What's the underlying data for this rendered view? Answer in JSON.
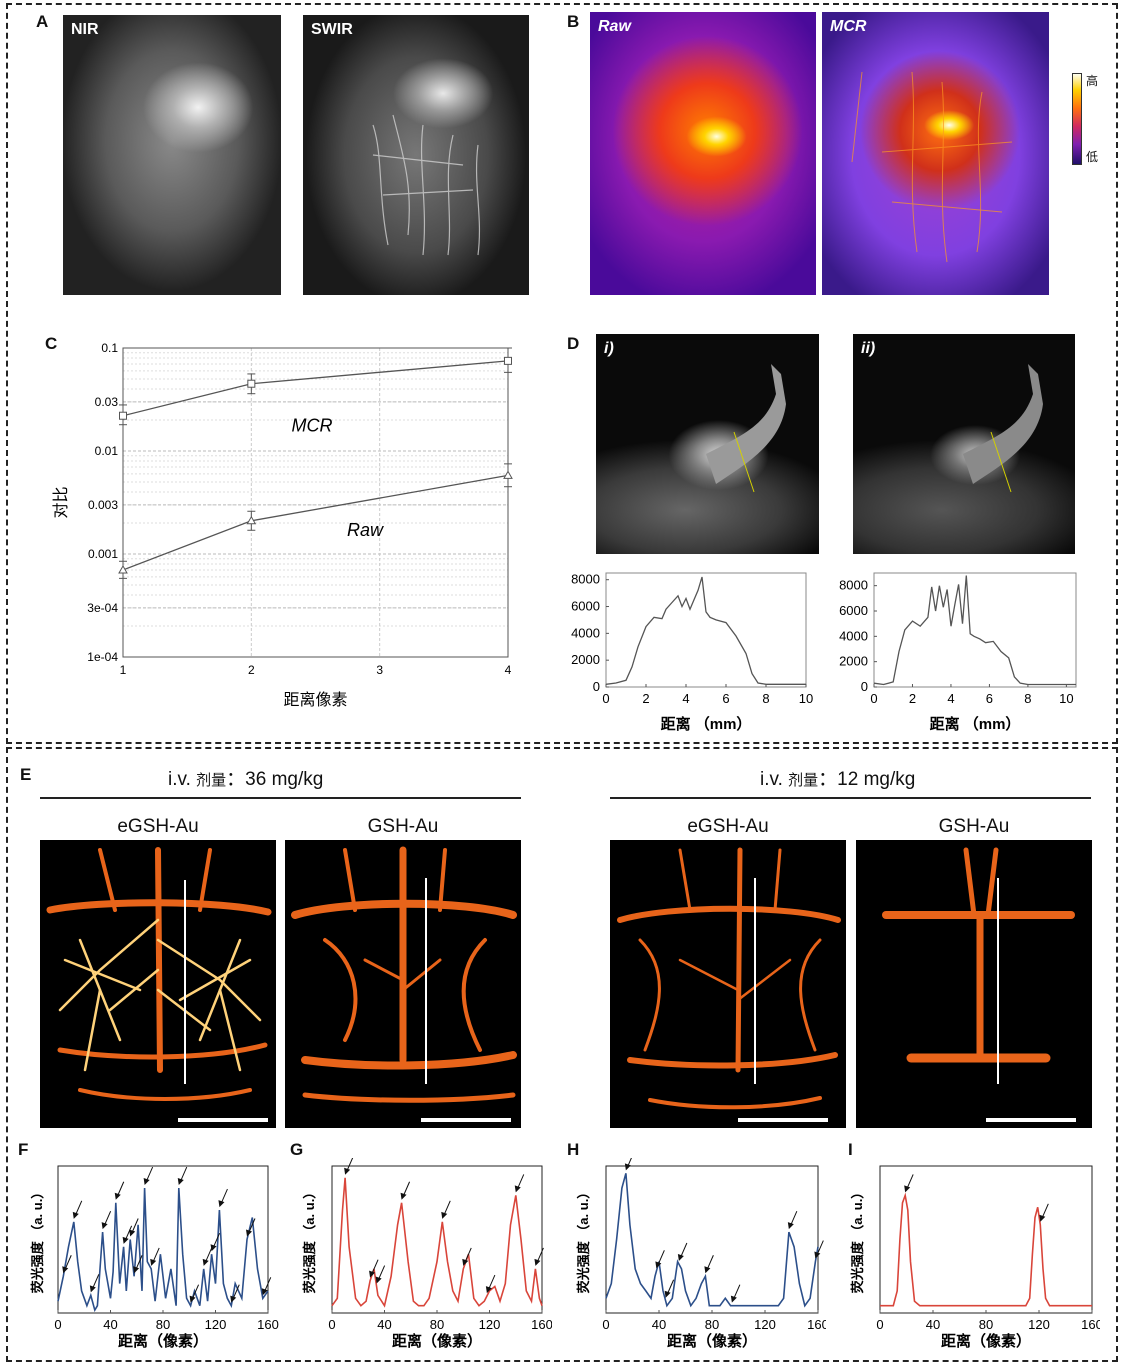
{
  "panels": {
    "A": {
      "label": "A",
      "images": [
        {
          "label": "NIR"
        },
        {
          "label": "SWIR"
        }
      ]
    },
    "B": {
      "label": "B",
      "images": [
        {
          "label": "Raw"
        },
        {
          "label": "MCR"
        }
      ],
      "colorbar": {
        "high": "高",
        "low": "低"
      }
    },
    "C": {
      "label": "C"
    },
    "D": {
      "label": "D",
      "images": [
        {
          "label": "i)"
        },
        {
          "label": "ii)"
        }
      ]
    },
    "E": {
      "label": "E",
      "groups": [
        {
          "dose_prefix": "i.v.",
          "dose_word": "剂量",
          "dose_value": "：36 mg/kg",
          "images": [
            {
              "label": "eGSH-Au"
            },
            {
              "label": "GSH-Au"
            }
          ]
        },
        {
          "dose_prefix": "i.v.",
          "dose_word": "剂量",
          "dose_value": "：12 mg/kg",
          "images": [
            {
              "label": "eGSH-Au"
            },
            {
              "label": "GSH-Au"
            }
          ]
        }
      ]
    },
    "F": {
      "label": "F"
    },
    "G": {
      "label": "G"
    },
    "H": {
      "label": "H"
    },
    "I": {
      "label": "I"
    }
  },
  "colors": {
    "blue": "#2c4f8a",
    "red": "#d9453a",
    "gray": "#555555",
    "mcr_line": "#555555"
  },
  "chart_data": [
    {
      "id": "C",
      "type": "line",
      "xlabel": "距离像素",
      "ylabel": "对比",
      "x": [
        1,
        2,
        4
      ],
      "xticks": [
        1,
        2,
        3,
        4
      ],
      "yscale": "log",
      "ylim": [
        0.0001,
        0.1
      ],
      "yticks": [
        {
          "v": 0.1,
          "t": "0.1"
        },
        {
          "v": 0.03,
          "t": "0.03"
        },
        {
          "v": 0.01,
          "t": "0.01"
        },
        {
          "v": 0.003,
          "t": "0.003"
        },
        {
          "v": 0.001,
          "t": "0.001"
        },
        {
          "v": 0.0003,
          "t": "3e-04"
        },
        {
          "v": 0.0001,
          "t": "1e-04"
        }
      ],
      "grid": true,
      "series": [
        {
          "name": "MCR",
          "marker": "square",
          "values": [
            0.022,
            0.045,
            0.075
          ],
          "err_lo": [
            0.018,
            0.036,
            0.058
          ],
          "err_hi": [
            0.028,
            0.056,
            0.1
          ]
        },
        {
          "name": "Raw",
          "marker": "triangle",
          "values": [
            0.0007,
            0.0021,
            0.0058
          ],
          "err_lo": [
            0.00058,
            0.0017,
            0.0045
          ],
          "err_hi": [
            0.00085,
            0.0026,
            0.0075
          ]
        }
      ]
    },
    {
      "id": "D-i",
      "type": "line",
      "xlabel": "距离 （mm）",
      "xlim": [
        0,
        10
      ],
      "ylim": [
        0,
        8500
      ],
      "xticks": [
        0,
        2,
        4,
        6,
        8,
        10
      ],
      "yticks": [
        0,
        2000,
        4000,
        6000,
        8000
      ],
      "x": [
        0,
        0.5,
        1,
        1.3,
        1.6,
        2,
        2.4,
        2.8,
        3,
        3.3,
        3.6,
        3.8,
        4,
        4.2,
        4.4,
        4.6,
        4.8,
        5,
        5.2,
        5.5,
        6,
        6.5,
        7,
        7.3,
        7.6,
        8,
        9,
        10
      ],
      "values": [
        200,
        300,
        500,
        1500,
        3000,
        4500,
        5200,
        5100,
        5800,
        6300,
        6800,
        6000,
        6600,
        5800,
        6500,
        7200,
        8200,
        5600,
        5200,
        5000,
        4800,
        3800,
        2500,
        1000,
        300,
        200,
        200,
        200
      ]
    },
    {
      "id": "D-ii",
      "type": "line",
      "xlabel": "距离 （mm）",
      "xlim": [
        0,
        10.5
      ],
      "ylim": [
        0,
        9000
      ],
      "xticks": [
        0,
        2,
        4,
        6,
        8,
        10
      ],
      "yticks": [
        0,
        2000,
        4000,
        6000,
        8000
      ],
      "x": [
        0,
        0.5,
        1,
        1.3,
        1.6,
        2,
        2.4,
        2.8,
        3,
        3.2,
        3.4,
        3.6,
        3.8,
        4,
        4.2,
        4.4,
        4.6,
        4.8,
        5,
        5.2,
        5.5,
        5.8,
        6.2,
        6.6,
        7,
        7.3,
        7.6,
        8,
        9,
        10.5
      ],
      "values": [
        300,
        200,
        400,
        2800,
        4500,
        5200,
        4800,
        5500,
        7900,
        6000,
        8000,
        6300,
        7700,
        4800,
        6500,
        8100,
        5000,
        8800,
        4200,
        4000,
        3800,
        3500,
        3600,
        2800,
        2300,
        800,
        300,
        200,
        200,
        200
      ]
    },
    {
      "id": "F",
      "type": "line",
      "xlabel": "距离（像素）",
      "ylabel": "荧光强度 （a. u.）",
      "xlim": [
        0,
        160
      ],
      "xticks": [
        0,
        40,
        80,
        120,
        160
      ],
      "x": [
        0,
        4,
        8,
        12,
        15,
        18,
        22,
        25,
        28,
        30,
        34,
        36,
        40,
        42,
        44,
        47,
        50,
        52,
        55,
        58,
        61,
        64,
        66,
        68,
        71,
        74,
        78,
        82,
        86,
        90,
        92,
        95,
        98,
        101,
        104,
        108,
        111,
        114,
        117,
        120,
        123,
        126,
        129,
        132,
        135,
        140,
        144,
        148,
        152,
        156,
        160
      ],
      "values": [
        0.08,
        0.25,
        0.45,
        0.62,
        0.35,
        0.15,
        0.05,
        0.12,
        0.02,
        0.05,
        0.55,
        0.3,
        0.1,
        0.28,
        0.75,
        0.2,
        0.45,
        0.15,
        0.5,
        0.25,
        0.6,
        0.15,
        0.85,
        0.35,
        0.3,
        0.08,
        0.4,
        0.1,
        0.3,
        0.05,
        0.85,
        0.4,
        0.1,
        0.05,
        0.15,
        0.05,
        0.3,
        0.08,
        0.4,
        0.2,
        0.7,
        0.2,
        0.1,
        0.05,
        0.2,
        0.1,
        0.5,
        0.65,
        0.3,
        0.1,
        0.15
      ],
      "arrows_at": [
        4,
        12,
        25,
        34,
        44,
        50,
        55,
        58,
        66,
        71,
        92,
        101,
        111,
        117,
        123,
        132,
        144,
        156
      ]
    },
    {
      "id": "G",
      "type": "line",
      "xlabel": "距离（像素）",
      "ylabel": "荧光强度 （a. u.）",
      "xlim": [
        0,
        160
      ],
      "xticks": [
        0,
        40,
        80,
        120,
        160
      ],
      "x": [
        0,
        4,
        8,
        10,
        13,
        18,
        22,
        26,
        29,
        32,
        35,
        40,
        45,
        50,
        53,
        58,
        62,
        66,
        70,
        74,
        80,
        84,
        88,
        92,
        96,
        100,
        104,
        108,
        112,
        116,
        120,
        124,
        128,
        132,
        136,
        140,
        144,
        148,
        152,
        155,
        158,
        160
      ],
      "values": [
        0.05,
        0.1,
        0.7,
        0.92,
        0.45,
        0.1,
        0.05,
        0.08,
        0.22,
        0.3,
        0.12,
        0.05,
        0.25,
        0.6,
        0.75,
        0.35,
        0.08,
        0.05,
        0.05,
        0.1,
        0.35,
        0.62,
        0.35,
        0.15,
        0.08,
        0.3,
        0.4,
        0.1,
        0.05,
        0.08,
        0.15,
        0.18,
        0.08,
        0.2,
        0.6,
        0.8,
        0.5,
        0.15,
        0.08,
        0.3,
        0.1,
        0.05
      ],
      "arrows_at": [
        10,
        29,
        34,
        53,
        84,
        100,
        118,
        140,
        155
      ]
    },
    {
      "id": "H",
      "type": "line",
      "xlabel": "距离（像素）",
      "ylabel": "荧光强度 （a. u.）",
      "xlim": [
        0,
        160
      ],
      "xticks": [
        0,
        40,
        80,
        120,
        160
      ],
      "x": [
        0,
        4,
        8,
        12,
        15,
        18,
        22,
        26,
        30,
        34,
        37,
        40,
        43,
        46,
        50,
        54,
        57,
        60,
        64,
        68,
        72,
        75,
        78,
        82,
        86,
        90,
        94,
        98,
        102,
        110,
        120,
        126,
        130,
        134,
        138,
        142,
        146,
        150,
        154,
        158,
        160
      ],
      "values": [
        0.1,
        0.2,
        0.5,
        0.85,
        0.95,
        0.6,
        0.3,
        0.2,
        0.15,
        0.1,
        0.25,
        0.35,
        0.15,
        0.05,
        0.1,
        0.35,
        0.3,
        0.15,
        0.05,
        0.1,
        0.2,
        0.25,
        0.05,
        0.05,
        0.05,
        0.1,
        0.05,
        0.05,
        0.05,
        0.05,
        0.05,
        0.05,
        0.05,
        0.1,
        0.55,
        0.45,
        0.2,
        0.05,
        0.1,
        0.35,
        0.45
      ],
      "arrows_at": [
        15,
        38,
        45,
        55,
        75,
        95,
        138,
        158
      ]
    },
    {
      "id": "I",
      "type": "line",
      "xlabel": "距离（像素）",
      "ylabel": "荧光强度 （a. u.）",
      "xlim": [
        0,
        160
      ],
      "xticks": [
        0,
        40,
        80,
        120,
        160
      ],
      "x": [
        0,
        10,
        13,
        15,
        17,
        19,
        21,
        23,
        26,
        30,
        40,
        80,
        110,
        113,
        115,
        117,
        119,
        121,
        123,
        125,
        128,
        132,
        160
      ],
      "values": [
        0.05,
        0.05,
        0.15,
        0.5,
        0.75,
        0.8,
        0.7,
        0.35,
        0.08,
        0.05,
        0.05,
        0.05,
        0.05,
        0.1,
        0.4,
        0.65,
        0.72,
        0.6,
        0.3,
        0.1,
        0.05,
        0.05,
        0.05
      ],
      "arrows_at": [
        19,
        121
      ]
    }
  ]
}
